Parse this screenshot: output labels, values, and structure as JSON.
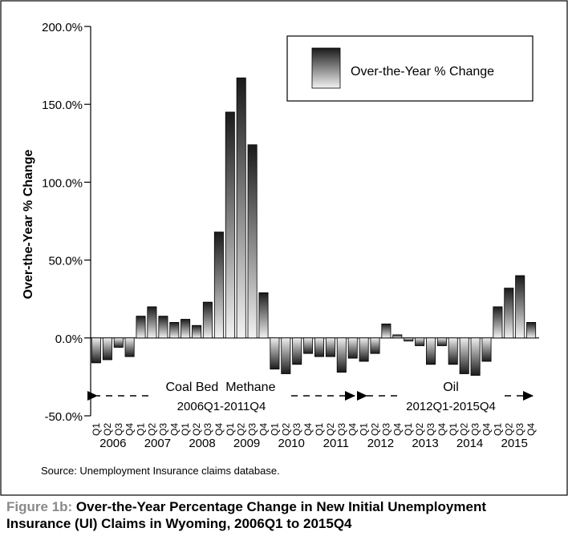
{
  "figure": {
    "label": "Figure 1b:",
    "title_line1": "Over-the-Year Percentage Change in New Initial Unemployment",
    "title_line2": "Insurance (UI) Claims in Wyoming, 2006Q1 to 2015Q4",
    "source": "Source: Unemployment Insurance claims database."
  },
  "chart_data": {
    "type": "bar",
    "ylabel": "Over-the-Year % Change",
    "xlabel": "",
    "ylim": [
      -50,
      200
    ],
    "yticks": [
      "200.0%",
      "150.0%",
      "100.0%",
      "50.0%",
      "0.0%",
      "-50.0%"
    ],
    "ytick_values": [
      200,
      150,
      100,
      50,
      0,
      -50
    ],
    "quarters": [
      "Q1",
      "Q2",
      "Q3",
      "Q4"
    ],
    "years": [
      "2006",
      "2007",
      "2008",
      "2009",
      "2010",
      "2011",
      "2012",
      "2013",
      "2014",
      "2015"
    ],
    "series": [
      {
        "name": "Over-the-Year % Change",
        "values": [
          -16,
          -14,
          -6,
          -12,
          14,
          20,
          14,
          10,
          12,
          8,
          23,
          68,
          145,
          167,
          124,
          29,
          -20,
          -23,
          -17,
          -10,
          -12,
          -12,
          -22,
          -13,
          -15,
          -10,
          9,
          2,
          -2,
          -5,
          -17,
          -5,
          -17,
          -23,
          -24,
          -15,
          20,
          32,
          40,
          10
        ]
      }
    ],
    "legend": "top-right",
    "grid": false,
    "annotations": {
      "cbm_name": "Coal Bed  Methane",
      "cbm_range": "2006Q1-2011Q4",
      "oil_name": "Oil",
      "oil_range": "2012Q1-2015Q4"
    }
  }
}
